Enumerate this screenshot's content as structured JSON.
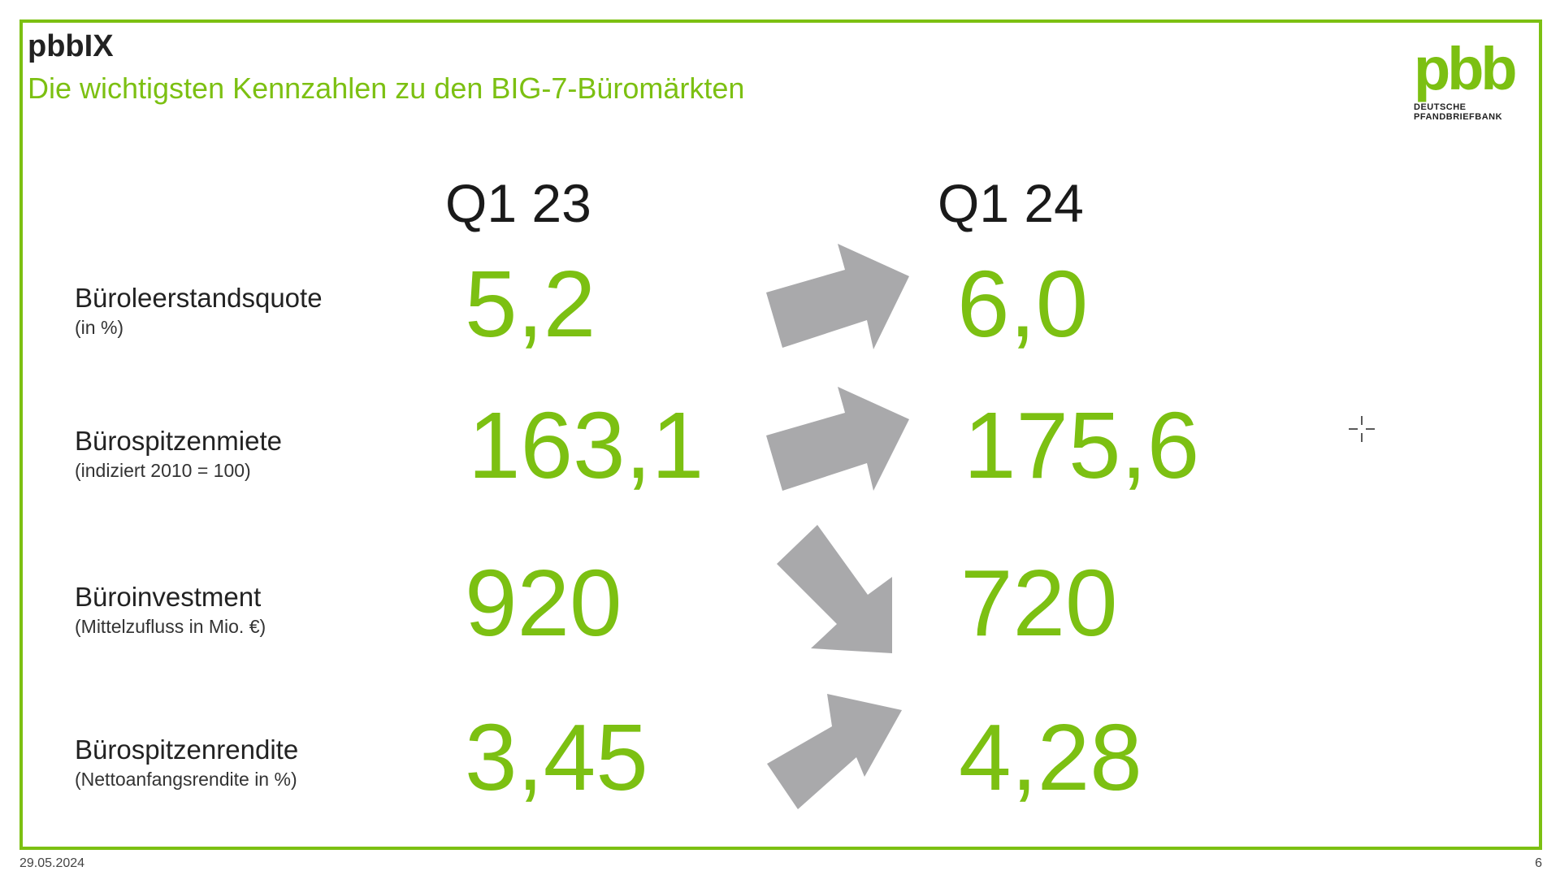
{
  "header": {
    "title": "pbbIX",
    "subtitle": "Die wichtigsten Kennzahlen zu den BIG-7-Büromärkten"
  },
  "logo": {
    "mark": "pbb",
    "line1": "DEUTSCHE",
    "line2": "PFANDBRIEFBANK"
  },
  "columns": {
    "left": "Q1 23",
    "right": "Q1 24"
  },
  "rows": [
    {
      "label": "Büroleerstandsquote",
      "unit": "(in %)",
      "q1_23": "5,2",
      "q1_24": "6,0",
      "trend": "up"
    },
    {
      "label": "Bürospitzenmiete",
      "unit": "(indiziert 2010 = 100)",
      "q1_23": "163,1",
      "q1_24": "175,6",
      "trend": "up"
    },
    {
      "label": "Büroinvestment",
      "unit": "(Mittelzufluss in Mio. €)",
      "q1_23": "920",
      "q1_24": "720",
      "trend": "down"
    },
    {
      "label": "Bürospitzenrendite",
      "unit": "(Nettoanfangsrendite in %)",
      "q1_23": "3,45",
      "q1_24": "4,28",
      "trend": "up"
    }
  ],
  "footer": {
    "date": "29.05.2024",
    "page": "6"
  },
  "colors": {
    "accent": "#7cc012",
    "arrow": "#a9a9ab"
  }
}
